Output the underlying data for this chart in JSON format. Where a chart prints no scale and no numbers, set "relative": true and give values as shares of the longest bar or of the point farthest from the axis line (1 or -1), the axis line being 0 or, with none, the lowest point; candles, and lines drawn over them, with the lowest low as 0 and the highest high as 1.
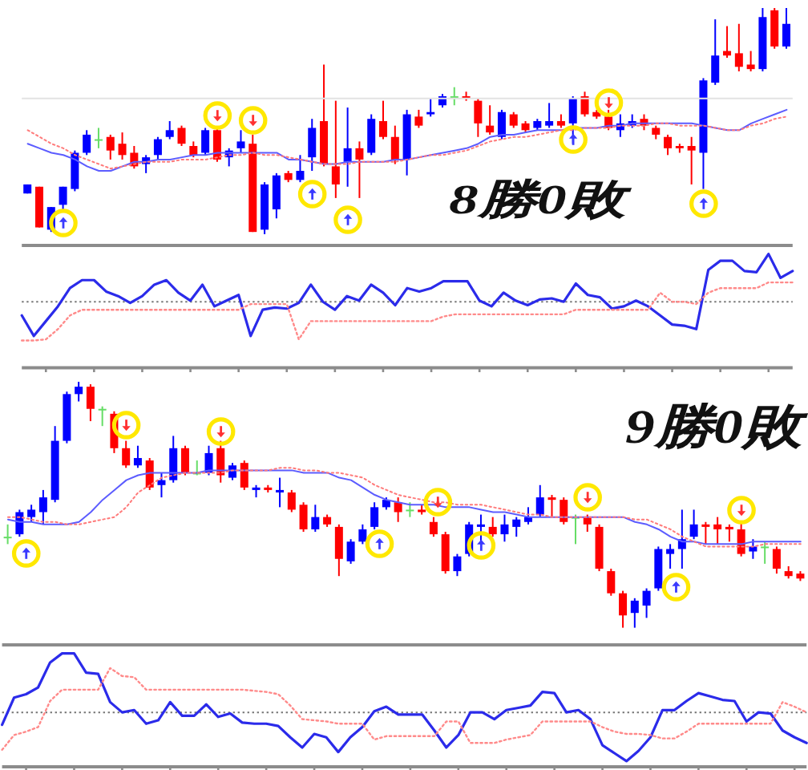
{
  "chart_data": [
    {
      "type": "candlestick",
      "relative": true,
      "categories": [
        null,
        null,
        null,
        null,
        null,
        null,
        null,
        null,
        null,
        null,
        null,
        null,
        null,
        null,
        null,
        null,
        null,
        null,
        null,
        null,
        null,
        null,
        null,
        null,
        null,
        null,
        null,
        null,
        null,
        null,
        null,
        null,
        null,
        null,
        null,
        null,
        null,
        null,
        null,
        null,
        null,
        null,
        null,
        null,
        null,
        null,
        null,
        null,
        null,
        null,
        null,
        null,
        null,
        null,
        null,
        null,
        null,
        null,
        null,
        null,
        null,
        null,
        null,
        null,
        null
      ],
      "ohlc": [
        [
          0.18,
          0.22,
          0.18,
          0.22
        ],
        [
          0.21,
          0.21,
          0.03,
          0.03
        ],
        [
          0.02,
          0.12,
          0.01,
          0.12
        ],
        [
          0.13,
          0.21,
          0.11,
          0.21
        ],
        [
          0.2,
          0.37,
          0.19,
          0.36
        ],
        [
          0.36,
          0.46,
          0.35,
          0.44
        ],
        [
          0.42,
          0.47,
          0.38,
          0.42
        ],
        [
          0.43,
          0.44,
          0.33,
          0.37
        ],
        [
          0.4,
          0.45,
          0.33,
          0.35
        ],
        [
          0.36,
          0.39,
          0.29,
          0.3
        ],
        [
          0.31,
          0.35,
          0.27,
          0.34
        ],
        [
          0.35,
          0.43,
          0.33,
          0.42
        ],
        [
          0.43,
          0.5,
          0.42,
          0.46
        ],
        [
          0.47,
          0.48,
          0.39,
          0.4
        ],
        [
          0.39,
          0.41,
          0.34,
          0.35
        ],
        [
          0.36,
          0.47,
          0.35,
          0.46
        ],
        [
          0.46,
          0.47,
          0.32,
          0.33
        ],
        [
          0.34,
          0.38,
          0.3,
          0.37
        ],
        [
          0.38,
          0.46,
          0.36,
          0.41
        ],
        [
          0.4,
          0.44,
          0.01,
          0.01
        ],
        [
          0.02,
          0.23,
          0.0,
          0.22
        ],
        [
          0.11,
          0.27,
          0.07,
          0.26
        ],
        [
          0.27,
          0.28,
          0.23,
          0.24
        ],
        [
          0.24,
          0.35,
          0.23,
          0.28
        ],
        [
          0.34,
          0.51,
          0.28,
          0.47
        ],
        [
          0.5,
          0.75,
          0.3,
          0.31
        ],
        [
          0.3,
          0.59,
          0.16,
          0.22
        ],
        [
          0.32,
          0.56,
          0.21,
          0.38
        ],
        [
          0.38,
          0.41,
          0.16,
          0.33
        ],
        [
          0.36,
          0.53,
          0.35,
          0.51
        ],
        [
          0.5,
          0.59,
          0.42,
          0.43
        ],
        [
          0.43,
          0.48,
          0.31,
          0.33
        ],
        [
          0.33,
          0.55,
          0.26,
          0.53
        ],
        [
          0.52,
          0.55,
          0.47,
          0.48
        ],
        [
          0.53,
          0.6,
          0.52,
          0.54
        ],
        [
          0.57,
          0.62,
          0.56,
          0.61
        ],
        [
          0.61,
          0.65,
          0.57,
          0.61
        ],
        [
          0.61,
          0.63,
          0.59,
          0.6
        ],
        [
          0.59,
          0.6,
          0.43,
          0.49
        ],
        [
          0.48,
          0.57,
          0.44,
          0.45
        ],
        [
          0.43,
          0.55,
          0.42,
          0.54
        ],
        [
          0.53,
          0.54,
          0.47,
          0.48
        ],
        [
          0.49,
          0.5,
          0.45,
          0.46
        ],
        [
          0.47,
          0.51,
          0.46,
          0.5
        ],
        [
          0.48,
          0.58,
          0.47,
          0.5
        ],
        [
          0.5,
          0.53,
          0.47,
          0.48
        ],
        [
          0.49,
          0.61,
          0.4,
          0.6
        ],
        [
          0.61,
          0.63,
          0.52,
          0.53
        ],
        [
          0.54,
          0.55,
          0.51,
          0.52
        ],
        [
          0.52,
          0.55,
          0.46,
          0.47
        ],
        [
          0.46,
          0.53,
          0.43,
          0.49
        ],
        [
          0.48,
          0.53,
          0.47,
          0.5
        ],
        [
          0.51,
          0.53,
          0.46,
          0.48
        ],
        [
          0.47,
          0.48,
          0.42,
          0.44
        ],
        [
          0.43,
          0.44,
          0.35,
          0.38
        ],
        [
          0.39,
          0.4,
          0.36,
          0.38
        ],
        [
          0.39,
          0.43,
          0.22,
          0.37
        ],
        [
          0.36,
          0.69,
          0.2,
          0.68
        ],
        [
          0.67,
          0.95,
          0.66,
          0.79
        ],
        [
          0.81,
          0.92,
          0.78,
          0.79
        ],
        [
          0.8,
          0.93,
          0.72,
          0.74
        ],
        [
          0.75,
          0.81,
          0.72,
          0.73
        ],
        [
          0.73,
          1.0,
          0.72,
          0.96
        ],
        [
          0.99,
          1.0,
          0.82,
          0.83
        ],
        [
          0.83,
          1.0,
          0.82,
          0.93
        ]
      ],
      "colors": [
        "#0000ff",
        "#ff0000",
        "#0000ff",
        "#0000ff",
        "#0000ff",
        "#0000ff",
        "#66dd66",
        "#ff0000",
        "#ff0000",
        "#ff0000",
        "#0000ff",
        "#0000ff",
        "#0000ff",
        "#ff0000",
        "#ff0000",
        "#0000ff",
        "#ff0000",
        "#0000ff",
        "#0000ff",
        "#ff0000",
        "#0000ff",
        "#0000ff",
        "#ff0000",
        "#0000ff",
        "#0000ff",
        "#ff0000",
        "#ff0000",
        "#0000ff",
        "#ff0000",
        "#0000ff",
        "#ff0000",
        "#ff0000",
        "#0000ff",
        "#ff0000",
        "#0000ff",
        "#0000ff",
        "#66dd66",
        "#ff0000",
        "#ff0000",
        "#ff0000",
        "#0000ff",
        "#ff0000",
        "#ff0000",
        "#0000ff",
        "#0000ff",
        "#ff0000",
        "#0000ff",
        "#ff0000",
        "#ff0000",
        "#ff0000",
        "#0000ff",
        "#0000ff",
        "#ff0000",
        "#ff0000",
        "#ff0000",
        "#ff0000",
        "#ff0000",
        "#0000ff",
        "#0000ff",
        "#ff0000",
        "#ff0000",
        "#ff0000",
        "#0000ff",
        "#ff0000",
        "#0000ff"
      ],
      "series": [
        {
          "type": "line",
          "color": "#5c5cff",
          "values": [
            0.4,
            0.38,
            0.36,
            0.35,
            0.33,
            0.3,
            0.28,
            0.28,
            0.3,
            0.32,
            0.32,
            0.33,
            0.33,
            0.34,
            0.35,
            0.35,
            0.36,
            0.36,
            0.36,
            0.36,
            0.36,
            0.36,
            0.33,
            0.33,
            0.32,
            0.31,
            0.31,
            0.32,
            0.32,
            0.32,
            0.32,
            0.33,
            0.33,
            0.34,
            0.35,
            0.36,
            0.37,
            0.38,
            0.4,
            0.43,
            0.44,
            0.44,
            0.45,
            0.46,
            0.46,
            0.46,
            0.47,
            0.47,
            0.47,
            0.48,
            0.48,
            0.49,
            0.49,
            0.49,
            0.49,
            0.49,
            0.49,
            0.48,
            0.47,
            0.46,
            0.46,
            0.49,
            0.51,
            0.53,
            0.55
          ]
        },
        {
          "type": "line",
          "color": "#ff7a7a",
          "line_style": "dotted",
          "values": [
            0.46,
            0.43,
            0.4,
            0.38,
            0.35,
            0.33,
            0.31,
            0.29,
            0.3,
            0.31,
            0.32,
            0.32,
            0.32,
            0.33,
            0.33,
            0.33,
            0.34,
            0.35,
            0.35,
            0.36,
            0.35,
            0.35,
            0.34,
            0.33,
            0.32,
            0.31,
            0.31,
            0.31,
            0.32,
            0.32,
            0.32,
            0.32,
            0.33,
            0.34,
            0.35,
            0.35,
            0.36,
            0.37,
            0.39,
            0.41,
            0.42,
            0.43,
            0.43,
            0.44,
            0.45,
            0.46,
            0.46,
            0.47,
            0.47,
            0.47,
            0.48,
            0.48,
            0.48,
            0.49,
            0.49,
            0.48,
            0.48,
            0.48,
            0.47,
            0.46,
            0.46,
            0.48,
            0.49,
            0.51,
            0.52
          ]
        }
      ],
      "ref_lines": [
        {
          "axis": "y",
          "value": 0.6,
          "color": "#e3e3e3"
        }
      ],
      "annotations": [
        "8勝0敗"
      ]
    },
    {
      "type": "line",
      "relative": true,
      "categories": [
        null,
        null,
        null,
        null,
        null,
        null,
        null,
        null,
        null,
        null,
        null,
        null,
        null,
        null,
        null,
        null,
        null,
        null,
        null,
        null,
        null,
        null,
        null,
        null,
        null,
        null,
        null,
        null,
        null,
        null,
        null,
        null,
        null,
        null,
        null,
        null,
        null,
        null,
        null,
        null,
        null,
        null,
        null,
        null,
        null,
        null,
        null,
        null,
        null,
        null,
        null,
        null,
        null,
        null,
        null,
        null,
        null,
        null,
        null,
        null,
        null,
        null,
        null,
        null,
        null
      ],
      "series": [
        {
          "color": "#2b2bea",
          "values": [
            0.46,
            0.28,
            0.41,
            0.54,
            0.7,
            0.77,
            0.77,
            0.67,
            0.63,
            0.57,
            0.63,
            0.73,
            0.77,
            0.66,
            0.59,
            0.73,
            0.54,
            0.59,
            0.64,
            0.28,
            0.51,
            0.53,
            0.52,
            0.57,
            0.73,
            0.58,
            0.51,
            0.63,
            0.59,
            0.73,
            0.66,
            0.55,
            0.7,
            0.67,
            0.7,
            0.76,
            0.76,
            0.76,
            0.59,
            0.54,
            0.66,
            0.59,
            0.55,
            0.6,
            0.61,
            0.58,
            0.74,
            0.64,
            0.62,
            0.52,
            0.54,
            0.59,
            0.54,
            0.46,
            0.38,
            0.37,
            0.34,
            0.86,
            0.94,
            0.94,
            0.85,
            0.84,
            1.0,
            0.79,
            0.85
          ]
        },
        {
          "color": "#ff8a8a",
          "line_style": "dotted",
          "values": [
            0.24,
            0.24,
            0.25,
            0.34,
            0.46,
            0.51,
            0.51,
            0.51,
            0.51,
            0.51,
            0.51,
            0.51,
            0.51,
            0.51,
            0.51,
            0.51,
            0.51,
            0.51,
            0.51,
            0.56,
            0.56,
            0.56,
            0.56,
            0.25,
            0.41,
            0.41,
            0.41,
            0.41,
            0.41,
            0.41,
            0.41,
            0.41,
            0.41,
            0.41,
            0.41,
            0.45,
            0.47,
            0.47,
            0.47,
            0.47,
            0.47,
            0.47,
            0.47,
            0.47,
            0.47,
            0.47,
            0.51,
            0.51,
            0.51,
            0.51,
            0.51,
            0.51,
            0.51,
            0.66,
            0.58,
            0.58,
            0.56,
            0.66,
            0.7,
            0.7,
            0.7,
            0.7,
            0.75,
            0.75,
            0.75
          ]
        }
      ],
      "ref_lines": [
        {
          "axis": "y",
          "value": 0.58,
          "color": "#777777",
          "line_style": "dotted"
        }
      ]
    },
    {
      "type": "candlestick",
      "relative": true,
      "categories": [
        null,
        null,
        null,
        null,
        null,
        null,
        null,
        null,
        null,
        null,
        null,
        null,
        null,
        null,
        null,
        null,
        null,
        null,
        null,
        null,
        null,
        null,
        null,
        null,
        null,
        null,
        null,
        null,
        null,
        null,
        null,
        null,
        null,
        null,
        null,
        null,
        null,
        null,
        null,
        null,
        null,
        null,
        null,
        null,
        null,
        null,
        null,
        null,
        null,
        null,
        null,
        null,
        null,
        null,
        null,
        null,
        null,
        null,
        null,
        null,
        null,
        null,
        null,
        null,
        null,
        null,
        null,
        null
      ],
      "ohlc": [
        [
          0.37,
          0.42,
          0.34,
          0.37
        ],
        [
          0.38,
          0.48,
          0.37,
          0.47
        ],
        [
          0.45,
          0.5,
          0.43,
          0.48
        ],
        [
          0.47,
          0.56,
          0.42,
          0.53
        ],
        [
          0.52,
          0.82,
          0.51,
          0.76
        ],
        [
          0.76,
          0.96,
          0.75,
          0.95
        ],
        [
          0.95,
          1.0,
          0.92,
          0.98
        ],
        [
          0.98,
          0.99,
          0.84,
          0.89
        ],
        [
          0.89,
          0.9,
          0.82,
          0.89
        ],
        [
          0.87,
          0.88,
          0.71,
          0.73
        ],
        [
          0.73,
          0.76,
          0.65,
          0.66
        ],
        [
          0.66,
          0.74,
          0.65,
          0.69
        ],
        [
          0.68,
          0.69,
          0.56,
          0.57
        ],
        [
          0.58,
          0.63,
          0.53,
          0.6
        ],
        [
          0.6,
          0.78,
          0.59,
          0.73
        ],
        [
          0.73,
          0.74,
          0.62,
          0.63
        ],
        [
          0.63,
          0.68,
          0.62,
          0.63
        ],
        [
          0.63,
          0.74,
          0.62,
          0.71
        ],
        [
          0.73,
          0.76,
          0.59,
          0.62
        ],
        [
          0.61,
          0.67,
          0.6,
          0.66
        ],
        [
          0.67,
          0.68,
          0.56,
          0.57
        ],
        [
          0.56,
          0.58,
          0.53,
          0.57
        ],
        [
          0.57,
          0.58,
          0.55,
          0.56
        ],
        [
          0.55,
          0.61,
          0.49,
          0.56
        ],
        [
          0.55,
          0.56,
          0.47,
          0.48
        ],
        [
          0.5,
          0.51,
          0.39,
          0.4
        ],
        [
          0.4,
          0.5,
          0.39,
          0.45
        ],
        [
          0.45,
          0.46,
          0.41,
          0.42
        ],
        [
          0.41,
          0.42,
          0.21,
          0.28
        ],
        [
          0.27,
          0.36,
          0.26,
          0.35
        ],
        [
          0.35,
          0.42,
          0.34,
          0.4
        ],
        [
          0.41,
          0.51,
          0.4,
          0.49
        ],
        [
          0.49,
          0.53,
          0.48,
          0.52
        ],
        [
          0.51,
          0.53,
          0.43,
          0.47
        ],
        [
          0.48,
          0.51,
          0.45,
          0.48
        ],
        [
          0.48,
          0.5,
          0.46,
          0.47
        ],
        [
          0.43,
          0.45,
          0.37,
          0.38
        ],
        [
          0.38,
          0.39,
          0.22,
          0.23
        ],
        [
          0.23,
          0.3,
          0.21,
          0.29
        ],
        [
          0.3,
          0.43,
          0.29,
          0.42
        ],
        [
          0.41,
          0.46,
          0.34,
          0.42
        ],
        [
          0.41,
          0.45,
          0.37,
          0.38
        ],
        [
          0.38,
          0.46,
          0.35,
          0.42
        ],
        [
          0.41,
          0.45,
          0.37,
          0.44
        ],
        [
          0.43,
          0.49,
          0.42,
          0.45
        ],
        [
          0.46,
          0.58,
          0.45,
          0.53
        ],
        [
          0.53,
          0.54,
          0.45,
          0.52
        ],
        [
          0.52,
          0.53,
          0.42,
          0.43
        ],
        [
          0.45,
          0.46,
          0.34,
          0.45
        ],
        [
          0.45,
          0.46,
          0.39,
          0.42
        ],
        [
          0.41,
          0.42,
          0.23,
          0.24
        ],
        [
          0.23,
          0.24,
          0.13,
          0.14
        ],
        [
          0.14,
          0.15,
          0.0,
          0.05
        ],
        [
          0.06,
          0.12,
          0.0,
          0.11
        ],
        [
          0.09,
          0.16,
          0.04,
          0.15
        ],
        [
          0.16,
          0.33,
          0.15,
          0.32
        ],
        [
          0.3,
          0.34,
          0.24,
          0.32
        ],
        [
          0.32,
          0.48,
          0.24,
          0.36
        ],
        [
          0.37,
          0.48,
          0.36,
          0.42
        ],
        [
          0.42,
          0.43,
          0.34,
          0.41
        ],
        [
          0.42,
          0.45,
          0.34,
          0.4
        ],
        [
          0.41,
          0.42,
          0.35,
          0.4
        ],
        [
          0.4,
          0.43,
          0.29,
          0.3
        ],
        [
          0.31,
          0.36,
          0.28,
          0.33
        ],
        [
          0.33,
          0.35,
          0.26,
          0.33
        ],
        [
          0.32,
          0.33,
          0.22,
          0.24
        ],
        [
          0.23,
          0.25,
          0.2,
          0.21
        ],
        [
          0.22,
          0.23,
          0.19,
          0.2
        ]
      ],
      "colors": [
        "#66dd66",
        "#0000ff",
        "#0000ff",
        "#0000ff",
        "#0000ff",
        "#0000ff",
        "#0000ff",
        "#ff0000",
        "#66dd66",
        "#ff0000",
        "#ff0000",
        "#0000ff",
        "#ff0000",
        "#0000ff",
        "#0000ff",
        "#ff0000",
        "#66dd66",
        "#0000ff",
        "#ff0000",
        "#0000ff",
        "#ff0000",
        "#0000ff",
        "#ff0000",
        "#0000ff",
        "#ff0000",
        "#ff0000",
        "#0000ff",
        "#ff0000",
        "#ff0000",
        "#0000ff",
        "#0000ff",
        "#0000ff",
        "#0000ff",
        "#ff0000",
        "#66dd66",
        "#ff0000",
        "#ff0000",
        "#ff0000",
        "#0000ff",
        "#0000ff",
        "#0000ff",
        "#ff0000",
        "#0000ff",
        "#0000ff",
        "#0000ff",
        "#0000ff",
        "#ff0000",
        "#ff0000",
        "#66dd66",
        "#ff0000",
        "#ff0000",
        "#ff0000",
        "#ff0000",
        "#0000ff",
        "#0000ff",
        "#0000ff",
        "#0000ff",
        "#0000ff",
        "#0000ff",
        "#ff0000",
        "#ff0000",
        "#ff0000",
        "#ff0000",
        "#0000ff",
        "#66dd66",
        "#ff0000",
        "#ff0000",
        "#ff0000"
      ],
      "series": [
        {
          "type": "line",
          "color": "#5c5cff",
          "values": [
            0.44,
            0.43,
            0.43,
            0.42,
            0.42,
            0.42,
            0.43,
            0.47,
            0.52,
            0.56,
            0.6,
            0.62,
            0.63,
            0.63,
            0.63,
            0.63,
            0.63,
            0.64,
            0.64,
            0.64,
            0.64,
            0.64,
            0.64,
            0.64,
            0.64,
            0.63,
            0.63,
            0.63,
            0.61,
            0.6,
            0.57,
            0.54,
            0.52,
            0.51,
            0.5,
            0.5,
            0.5,
            0.49,
            0.49,
            0.49,
            0.48,
            0.47,
            0.47,
            0.46,
            0.45,
            0.45,
            0.45,
            0.45,
            0.45,
            0.45,
            0.45,
            0.45,
            0.45,
            0.43,
            0.42,
            0.4,
            0.37,
            0.35,
            0.35,
            0.34,
            0.34,
            0.34,
            0.34,
            0.35,
            0.35,
            0.35,
            0.35,
            0.35
          ]
        },
        {
          "type": "line",
          "color": "#ff7a7a",
          "line_style": "dotted",
          "values": [
            0.45,
            0.45,
            0.44,
            0.43,
            0.43,
            0.42,
            0.42,
            0.43,
            0.44,
            0.45,
            0.49,
            0.55,
            0.58,
            0.61,
            0.62,
            0.63,
            0.63,
            0.63,
            0.63,
            0.64,
            0.64,
            0.64,
            0.64,
            0.65,
            0.65,
            0.64,
            0.64,
            0.63,
            0.63,
            0.62,
            0.61,
            0.58,
            0.56,
            0.54,
            0.53,
            0.52,
            0.51,
            0.51,
            0.5,
            0.5,
            0.5,
            0.49,
            0.48,
            0.47,
            0.46,
            0.46,
            0.45,
            0.45,
            0.45,
            0.45,
            0.45,
            0.45,
            0.45,
            0.44,
            0.44,
            0.42,
            0.4,
            0.37,
            0.35,
            0.33,
            0.33,
            0.33,
            0.33,
            0.33,
            0.34,
            0.34,
            0.34,
            0.34
          ]
        }
      ],
      "annotations": [
        "9勝0敗"
      ]
    },
    {
      "type": "line",
      "relative": true,
      "categories": [
        null,
        null,
        null,
        null,
        null,
        null,
        null,
        null,
        null,
        null,
        null,
        null,
        null,
        null,
        null,
        null,
        null,
        null,
        null,
        null,
        null,
        null,
        null,
        null,
        null,
        null,
        null,
        null,
        null,
        null,
        null,
        null,
        null,
        null,
        null,
        null,
        null,
        null,
        null,
        null,
        null,
        null,
        null,
        null,
        null,
        null,
        null,
        null,
        null,
        null,
        null,
        null,
        null,
        null,
        null,
        null,
        null,
        null,
        null,
        null,
        null,
        null,
        null,
        null,
        null,
        null,
        null,
        null
      ],
      "series": [
        {
          "color": "#2b2bea",
          "values": [
            0.37,
            0.61,
            0.64,
            0.7,
            0.92,
            1.0,
            1.0,
            0.83,
            0.82,
            0.57,
            0.48,
            0.5,
            0.38,
            0.41,
            0.57,
            0.45,
            0.45,
            0.55,
            0.44,
            0.47,
            0.39,
            0.38,
            0.38,
            0.36,
            0.26,
            0.17,
            0.29,
            0.26,
            0.13,
            0.26,
            0.35,
            0.49,
            0.53,
            0.46,
            0.46,
            0.46,
            0.32,
            0.17,
            0.28,
            0.48,
            0.48,
            0.42,
            0.5,
            0.52,
            0.54,
            0.66,
            0.65,
            0.48,
            0.5,
            0.42,
            0.19,
            0.12,
            0.05,
            0.14,
            0.26,
            0.5,
            0.5,
            0.58,
            0.65,
            0.62,
            0.59,
            0.58,
            0.4,
            0.48,
            0.47,
            0.32,
            0.26,
            0.21
          ]
        },
        {
          "color": "#ff8a8a",
          "line_style": "dotted",
          "values": [
            0.15,
            0.28,
            0.31,
            0.35,
            0.58,
            0.68,
            0.68,
            0.68,
            0.68,
            0.87,
            0.8,
            0.79,
            0.68,
            0.68,
            0.68,
            0.68,
            0.68,
            0.68,
            0.68,
            0.68,
            0.68,
            0.67,
            0.66,
            0.64,
            0.54,
            0.42,
            0.41,
            0.4,
            0.38,
            0.38,
            0.38,
            0.24,
            0.27,
            0.27,
            0.27,
            0.27,
            0.27,
            0.4,
            0.4,
            0.21,
            0.21,
            0.21,
            0.24,
            0.26,
            0.28,
            0.4,
            0.4,
            0.4,
            0.4,
            0.4,
            0.35,
            0.31,
            0.29,
            0.29,
            0.28,
            0.25,
            0.25,
            0.31,
            0.38,
            0.38,
            0.38,
            0.38,
            0.38,
            0.38,
            0.38,
            0.57,
            0.53,
            0.48
          ]
        }
      ],
      "ref_lines": [
        {
          "axis": "y",
          "value": 0.48,
          "color": "#777777",
          "line_style": "dotted"
        }
      ]
    }
  ]
}
